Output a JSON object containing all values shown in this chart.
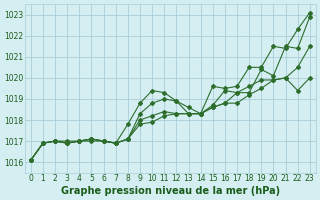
{
  "title": "Graphe pression niveau de la mer (hPa)",
  "xlim": [
    -0.5,
    23.5
  ],
  "ylim": [
    1015.5,
    1023.5
  ],
  "yticks": [
    1016,
    1017,
    1018,
    1019,
    1020,
    1021,
    1022,
    1023
  ],
  "xticks": [
    0,
    1,
    2,
    3,
    4,
    5,
    6,
    7,
    8,
    9,
    10,
    11,
    12,
    13,
    14,
    15,
    16,
    17,
    18,
    19,
    20,
    21,
    22,
    23
  ],
  "background_color": "#d4eef2",
  "grid_color": "#aacdd8",
  "line_color": "#2d6e2d",
  "series": [
    [
      1016.1,
      1016.9,
      1017.0,
      1017.0,
      1017.0,
      1017.1,
      1017.0,
      1016.9,
      1017.8,
      1018.8,
      1019.4,
      1019.3,
      1018.9,
      1018.3,
      1018.3,
      1019.6,
      1019.5,
      1019.6,
      1020.5,
      1020.5,
      1021.5,
      1021.4,
      1022.3,
      1023.1
    ],
    [
      1016.1,
      1016.9,
      1017.0,
      1016.9,
      1017.0,
      1017.0,
      1017.0,
      1016.9,
      1017.1,
      1018.0,
      1018.2,
      1018.4,
      1018.3,
      1018.3,
      1018.3,
      1018.6,
      1018.8,
      1018.8,
      1019.2,
      1019.5,
      1019.9,
      1020.0,
      1020.5,
      1021.5
    ],
    [
      1016.1,
      1016.9,
      1017.0,
      1016.9,
      1017.0,
      1017.1,
      1017.0,
      1016.9,
      1017.1,
      1017.8,
      1017.9,
      1018.2,
      1018.3,
      1018.3,
      1018.3,
      1018.6,
      1018.8,
      1019.3,
      1019.6,
      1019.9,
      1019.9,
      1020.0,
      1019.4,
      1020.0
    ],
    [
      1016.1,
      1016.9,
      1017.0,
      1016.9,
      1017.0,
      1017.1,
      1017.0,
      1016.9,
      1017.1,
      1018.3,
      1018.8,
      1019.0,
      1018.9,
      1018.6,
      1018.3,
      1018.7,
      1019.4,
      1019.3,
      1019.3,
      1020.4,
      1020.1,
      1021.5,
      1021.4,
      1022.9
    ]
  ],
  "marker": "D",
  "markersize": 2.0,
  "linewidth": 0.8,
  "tick_fontsize": 5.5,
  "label_fontsize": 7,
  "tick_color": "#1a5c1a",
  "label_color": "#1a5c1a"
}
